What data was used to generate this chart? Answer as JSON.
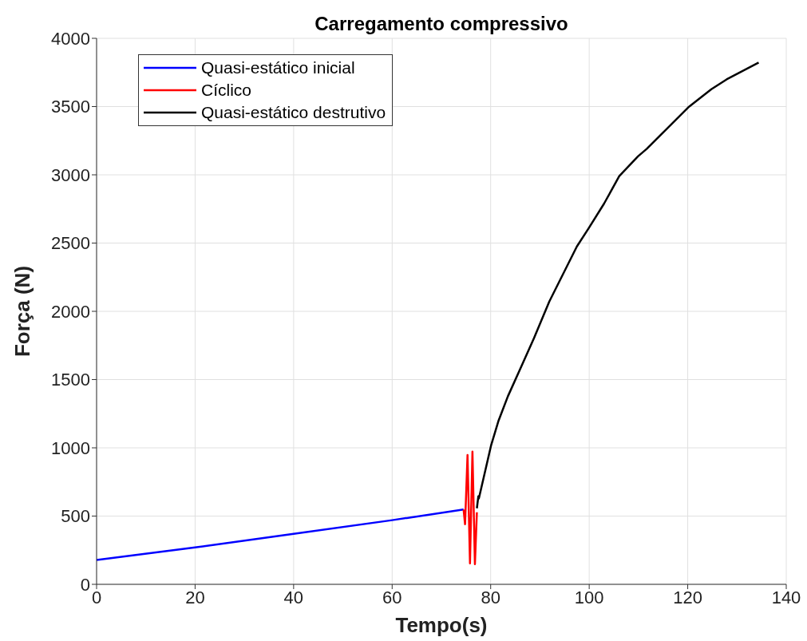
{
  "chart_data": {
    "type": "line",
    "title": "Carregamento compressivo",
    "xlabel": "Tempo(s)",
    "ylabel": "Força (N)",
    "xlim": [
      0,
      140
    ],
    "xticks": [
      0,
      20,
      40,
      60,
      80,
      100,
      120,
      140
    ],
    "ylim": [
      0,
      4000
    ],
    "yticks": [
      0,
      500,
      1000,
      1500,
      2000,
      2500,
      3000,
      3500,
      4000
    ],
    "grid": true,
    "legend": "top left",
    "line_style": "solid",
    "marker": "none",
    "series": [
      {
        "name": "Quasi-estático inicial",
        "color": "#0000ff",
        "x": [
          0,
          20,
          40,
          60,
          74.5
        ],
        "values": [
          178,
          270,
          370,
          470,
          548
        ]
      },
      {
        "name": "Cíclico",
        "color": "#ff0000",
        "x": [
          74.5,
          74.8,
          75.3,
          75.8,
          76.3,
          76.8,
          77.2
        ],
        "values": [
          548,
          440,
          947,
          154,
          972,
          148,
          528
        ]
      },
      {
        "name": "Quasi-estático destrutivo",
        "color": "#000000",
        "x": [
          77.2,
          77.5,
          77.6,
          80.1,
          81.6,
          83.5,
          86.3,
          88.8,
          91.9,
          97.5,
          99.9,
          103.0,
          106.1,
          109.9,
          111.7,
          117.3,
          120.1,
          124.8,
          127.9,
          134.4
        ],
        "values": [
          557,
          645,
          629,
          1020,
          1199,
          1378,
          1602,
          1804,
          2072,
          2475,
          2609,
          2788,
          2990,
          3135,
          3191,
          3393,
          3494,
          3627,
          3699,
          3822
        ]
      }
    ]
  }
}
